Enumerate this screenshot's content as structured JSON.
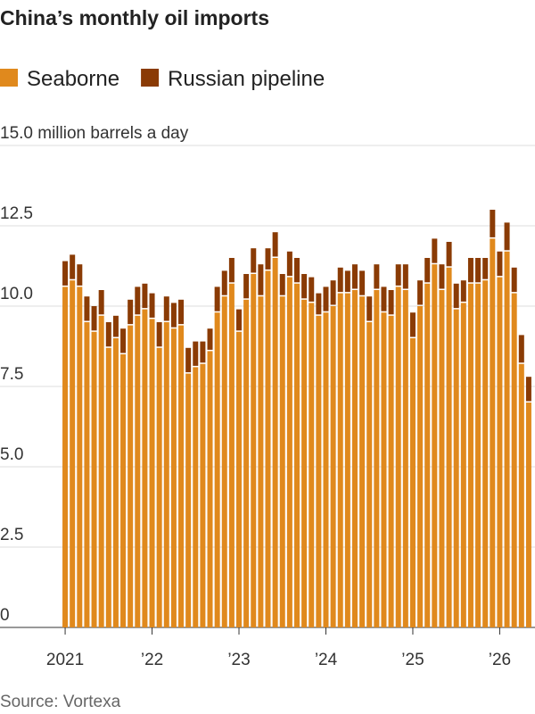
{
  "chart_data": {
    "type": "stacked_bar",
    "title": "China’s monthly oil imports",
    "source": "Source: Vortexa",
    "categories": [
      "2021",
      null,
      null,
      null,
      null,
      null,
      null,
      null,
      null,
      null,
      null,
      null,
      "’22",
      null,
      null,
      null,
      null,
      null,
      null,
      null,
      null,
      null,
      null,
      null,
      "’23",
      null,
      null,
      null,
      null,
      null,
      null,
      null,
      null,
      null,
      null,
      null,
      "’24",
      null,
      null,
      null,
      null,
      null,
      null,
      null,
      null,
      null,
      null,
      null,
      "’25",
      null,
      null,
      null,
      null,
      null,
      null,
      null,
      null,
      null,
      null,
      null,
      "’26",
      null,
      null,
      null,
      null
    ],
    "series": [
      {
        "name": "Seaborne",
        "color": "#e0891d",
        "values": [
          10.6,
          10.8,
          10.6,
          9.5,
          9.2,
          9.7,
          8.7,
          9.0,
          8.5,
          9.4,
          9.7,
          9.9,
          9.6,
          8.7,
          9.5,
          9.3,
          9.4,
          7.9,
          8.1,
          8.2,
          8.6,
          9.8,
          10.3,
          10.7,
          9.2,
          10.2,
          11.0,
          10.3,
          11.1,
          11.5,
          10.3,
          10.9,
          10.7,
          10.2,
          10.1,
          9.7,
          9.8,
          10.0,
          10.4,
          10.4,
          10.5,
          10.3,
          9.5,
          10.5,
          9.8,
          9.7,
          10.6,
          10.5,
          9.0,
          10.0,
          10.7,
          11.3,
          10.5,
          11.2,
          9.9,
          10.1,
          10.7,
          10.7,
          10.8,
          12.1,
          10.9,
          11.7,
          10.4,
          8.2,
          7.0
        ]
      },
      {
        "name": "Russian pipeline",
        "color": "#8a3b05",
        "values": [
          0.8,
          0.8,
          0.7,
          0.8,
          0.8,
          0.8,
          0.8,
          0.7,
          0.8,
          0.8,
          0.9,
          0.8,
          0.8,
          0.8,
          0.8,
          0.8,
          0.8,
          0.8,
          0.8,
          0.7,
          0.7,
          0.8,
          0.8,
          0.8,
          0.7,
          0.8,
          0.8,
          1.0,
          0.7,
          0.8,
          0.7,
          0.8,
          0.8,
          0.8,
          0.8,
          0.7,
          0.8,
          0.8,
          0.8,
          0.7,
          0.8,
          0.8,
          0.8,
          0.8,
          0.8,
          0.8,
          0.7,
          0.8,
          0.8,
          0.8,
          0.8,
          0.8,
          0.8,
          0.8,
          0.8,
          0.7,
          0.8,
          0.8,
          0.7,
          0.9,
          0.8,
          0.9,
          0.8,
          0.9,
          0.8
        ]
      }
    ],
    "ylim": [
      0,
      15
    ],
    "yticks": [
      0,
      {
        "value": 2.5,
        "label": "2.5"
      },
      {
        "value": 5,
        "label": "5.0"
      },
      {
        "value": 7.5,
        "label": "7.5"
      },
      {
        "value": 10,
        "label": "10.0"
      },
      {
        "value": 12.5,
        "label": "12.5"
      },
      {
        "value": 15,
        "label": "15.0 million barrels a day"
      }
    ],
    "grid": true
  }
}
